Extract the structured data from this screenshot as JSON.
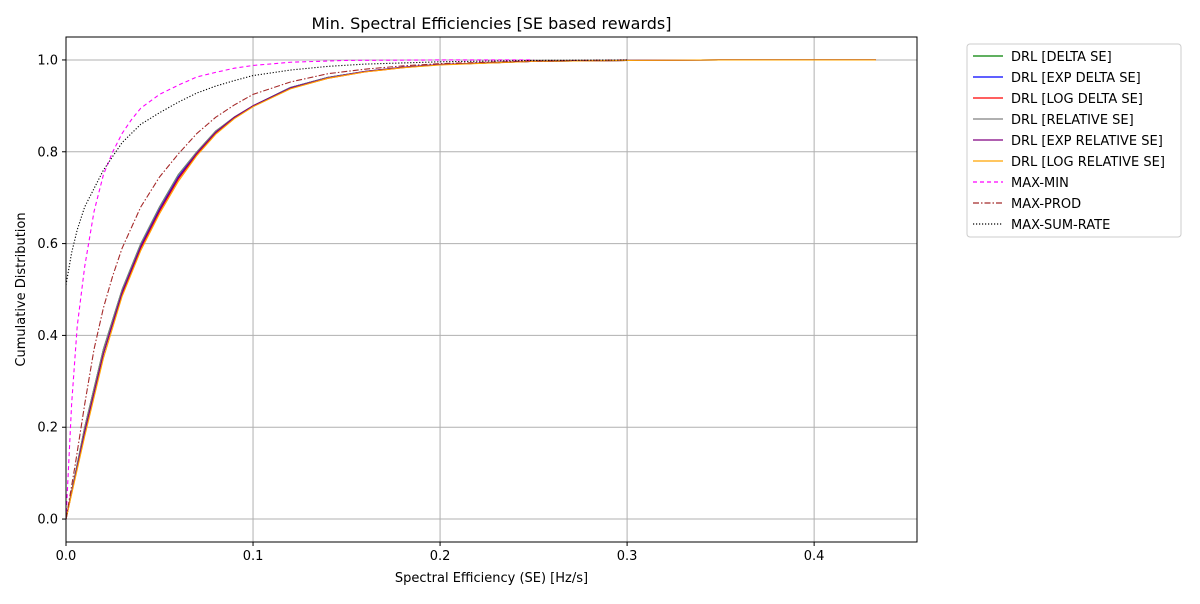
{
  "chart_data": {
    "type": "line",
    "title": "Min. Spectral Efficiencies [SE based rewards]",
    "xlabel": "Spectral Efficiency (SE) [Hz/s]",
    "ylabel": "Cumulative Distribution",
    "xlim": [
      0.0,
      0.455
    ],
    "ylim": [
      -0.05,
      1.05
    ],
    "xticks": [
      0.0,
      0.1,
      0.2,
      0.3,
      0.4
    ],
    "xtick_labels": [
      "0.0",
      "0.1",
      "0.2",
      "0.3",
      "0.4"
    ],
    "yticks": [
      0.0,
      0.2,
      0.4,
      0.6,
      0.8,
      1.0
    ],
    "ytick_labels": [
      "0.0",
      "0.2",
      "0.4",
      "0.6",
      "0.8",
      "1.0"
    ],
    "grid": true,
    "legend_position": "outside-right-top",
    "series": [
      {
        "name": "DRL [DELTA SE]",
        "color": "#008000",
        "dash": "solid",
        "x": [
          0.0,
          0.01,
          0.02,
          0.03,
          0.04,
          0.05,
          0.06,
          0.07,
          0.08,
          0.09,
          0.1,
          0.12,
          0.14,
          0.16,
          0.18,
          0.2,
          0.25,
          0.3,
          0.35,
          0.4,
          0.433
        ],
        "y": [
          0.0,
          0.2,
          0.37,
          0.5,
          0.6,
          0.68,
          0.75,
          0.8,
          0.845,
          0.875,
          0.9,
          0.94,
          0.962,
          0.975,
          0.984,
          0.99,
          0.997,
          0.999,
          1.0,
          1.0,
          1.0
        ]
      },
      {
        "name": "DRL [EXP DELTA SE]",
        "color": "#0000ff",
        "dash": "solid",
        "x": [
          0.0,
          0.01,
          0.02,
          0.03,
          0.04,
          0.05,
          0.06,
          0.07,
          0.08,
          0.09,
          0.1,
          0.12,
          0.14,
          0.16,
          0.18,
          0.2,
          0.25,
          0.3,
          0.35,
          0.4,
          0.433
        ],
        "y": [
          0.0,
          0.19,
          0.36,
          0.495,
          0.595,
          0.675,
          0.745,
          0.798,
          0.842,
          0.875,
          0.9,
          0.94,
          0.962,
          0.975,
          0.984,
          0.99,
          0.997,
          0.999,
          1.0,
          1.0,
          1.0
        ]
      },
      {
        "name": "DRL [LOG DELTA SE]",
        "color": "#ff0000",
        "dash": "solid",
        "x": [
          0.0,
          0.01,
          0.02,
          0.03,
          0.04,
          0.05,
          0.06,
          0.07,
          0.08,
          0.09,
          0.1,
          0.12,
          0.14,
          0.16,
          0.18,
          0.2,
          0.25,
          0.3,
          0.35,
          0.4,
          0.433
        ],
        "y": [
          0.0,
          0.19,
          0.36,
          0.49,
          0.59,
          0.67,
          0.74,
          0.795,
          0.84,
          0.873,
          0.9,
          0.938,
          0.96,
          0.974,
          0.983,
          0.99,
          0.997,
          0.999,
          1.0,
          1.0,
          1.0
        ]
      },
      {
        "name": "DRL [RELATIVE SE]",
        "color": "#808080",
        "dash": "solid",
        "x": [
          0.0,
          0.01,
          0.02,
          0.03,
          0.04,
          0.05,
          0.06,
          0.07,
          0.08,
          0.09,
          0.1,
          0.12,
          0.14,
          0.16,
          0.18,
          0.2,
          0.25,
          0.3,
          0.35,
          0.4,
          0.433
        ],
        "y": [
          0.0,
          0.2,
          0.37,
          0.5,
          0.6,
          0.68,
          0.75,
          0.8,
          0.845,
          0.876,
          0.9,
          0.94,
          0.962,
          0.975,
          0.984,
          0.99,
          0.997,
          0.999,
          1.0,
          1.0,
          1.0
        ]
      },
      {
        "name": "DRL [EXP RELATIVE SE]",
        "color": "#800080",
        "dash": "solid",
        "x": [
          0.0,
          0.01,
          0.02,
          0.03,
          0.04,
          0.05,
          0.06,
          0.07,
          0.08,
          0.09,
          0.1,
          0.12,
          0.14,
          0.16,
          0.18,
          0.2,
          0.25,
          0.3,
          0.35,
          0.4,
          0.433
        ],
        "y": [
          0.0,
          0.19,
          0.36,
          0.493,
          0.593,
          0.673,
          0.743,
          0.797,
          0.842,
          0.875,
          0.9,
          0.939,
          0.961,
          0.975,
          0.984,
          0.99,
          0.997,
          0.999,
          1.0,
          1.0,
          1.0
        ]
      },
      {
        "name": "DRL [LOG RELATIVE SE]",
        "color": "#ffa500",
        "dash": "solid",
        "x": [
          0.0,
          0.01,
          0.02,
          0.03,
          0.04,
          0.05,
          0.06,
          0.07,
          0.08,
          0.09,
          0.1,
          0.12,
          0.14,
          0.16,
          0.18,
          0.2,
          0.25,
          0.3,
          0.35,
          0.4,
          0.433
        ],
        "y": [
          0.0,
          0.18,
          0.35,
          0.485,
          0.585,
          0.665,
          0.735,
          0.792,
          0.838,
          0.872,
          0.898,
          0.937,
          0.96,
          0.974,
          0.983,
          0.989,
          0.997,
          0.999,
          1.0,
          1.0,
          1.0
        ]
      },
      {
        "name": "MAX-MIN",
        "color": "#ff00ff",
        "dash": "dashed",
        "x": [
          0.0,
          0.003,
          0.006,
          0.01,
          0.015,
          0.02,
          0.025,
          0.03,
          0.035,
          0.04,
          0.05,
          0.06,
          0.07,
          0.08,
          0.09,
          0.1,
          0.12,
          0.15,
          0.2,
          0.25
        ],
        "y": [
          0.0,
          0.25,
          0.42,
          0.55,
          0.67,
          0.75,
          0.8,
          0.84,
          0.87,
          0.895,
          0.925,
          0.945,
          0.963,
          0.973,
          0.982,
          0.988,
          0.995,
          0.999,
          1.0,
          1.0
        ]
      },
      {
        "name": "MAX-PROD",
        "color": "#a52a2a",
        "dash": "dashdot",
        "x": [
          0.0,
          0.005,
          0.01,
          0.015,
          0.02,
          0.025,
          0.03,
          0.04,
          0.05,
          0.06,
          0.07,
          0.08,
          0.09,
          0.1,
          0.12,
          0.14,
          0.16,
          0.18,
          0.2,
          0.25,
          0.3
        ],
        "y": [
          0.0,
          0.12,
          0.25,
          0.37,
          0.46,
          0.53,
          0.59,
          0.68,
          0.745,
          0.795,
          0.84,
          0.875,
          0.902,
          0.925,
          0.952,
          0.97,
          0.98,
          0.987,
          0.992,
          0.998,
          1.0
        ]
      },
      {
        "name": "MAX-SUM-RATE",
        "color": "#000000",
        "dash": "dotted",
        "x": [
          0.0,
          0.003,
          0.006,
          0.01,
          0.015,
          0.02,
          0.025,
          0.03,
          0.04,
          0.05,
          0.06,
          0.07,
          0.08,
          0.09,
          0.1,
          0.12,
          0.14,
          0.16,
          0.2,
          0.25,
          0.3
        ],
        "y": [
          0.51,
          0.58,
          0.63,
          0.68,
          0.72,
          0.76,
          0.79,
          0.82,
          0.86,
          0.885,
          0.908,
          0.928,
          0.943,
          0.955,
          0.966,
          0.978,
          0.986,
          0.991,
          0.996,
          0.999,
          1.0
        ]
      }
    ]
  }
}
